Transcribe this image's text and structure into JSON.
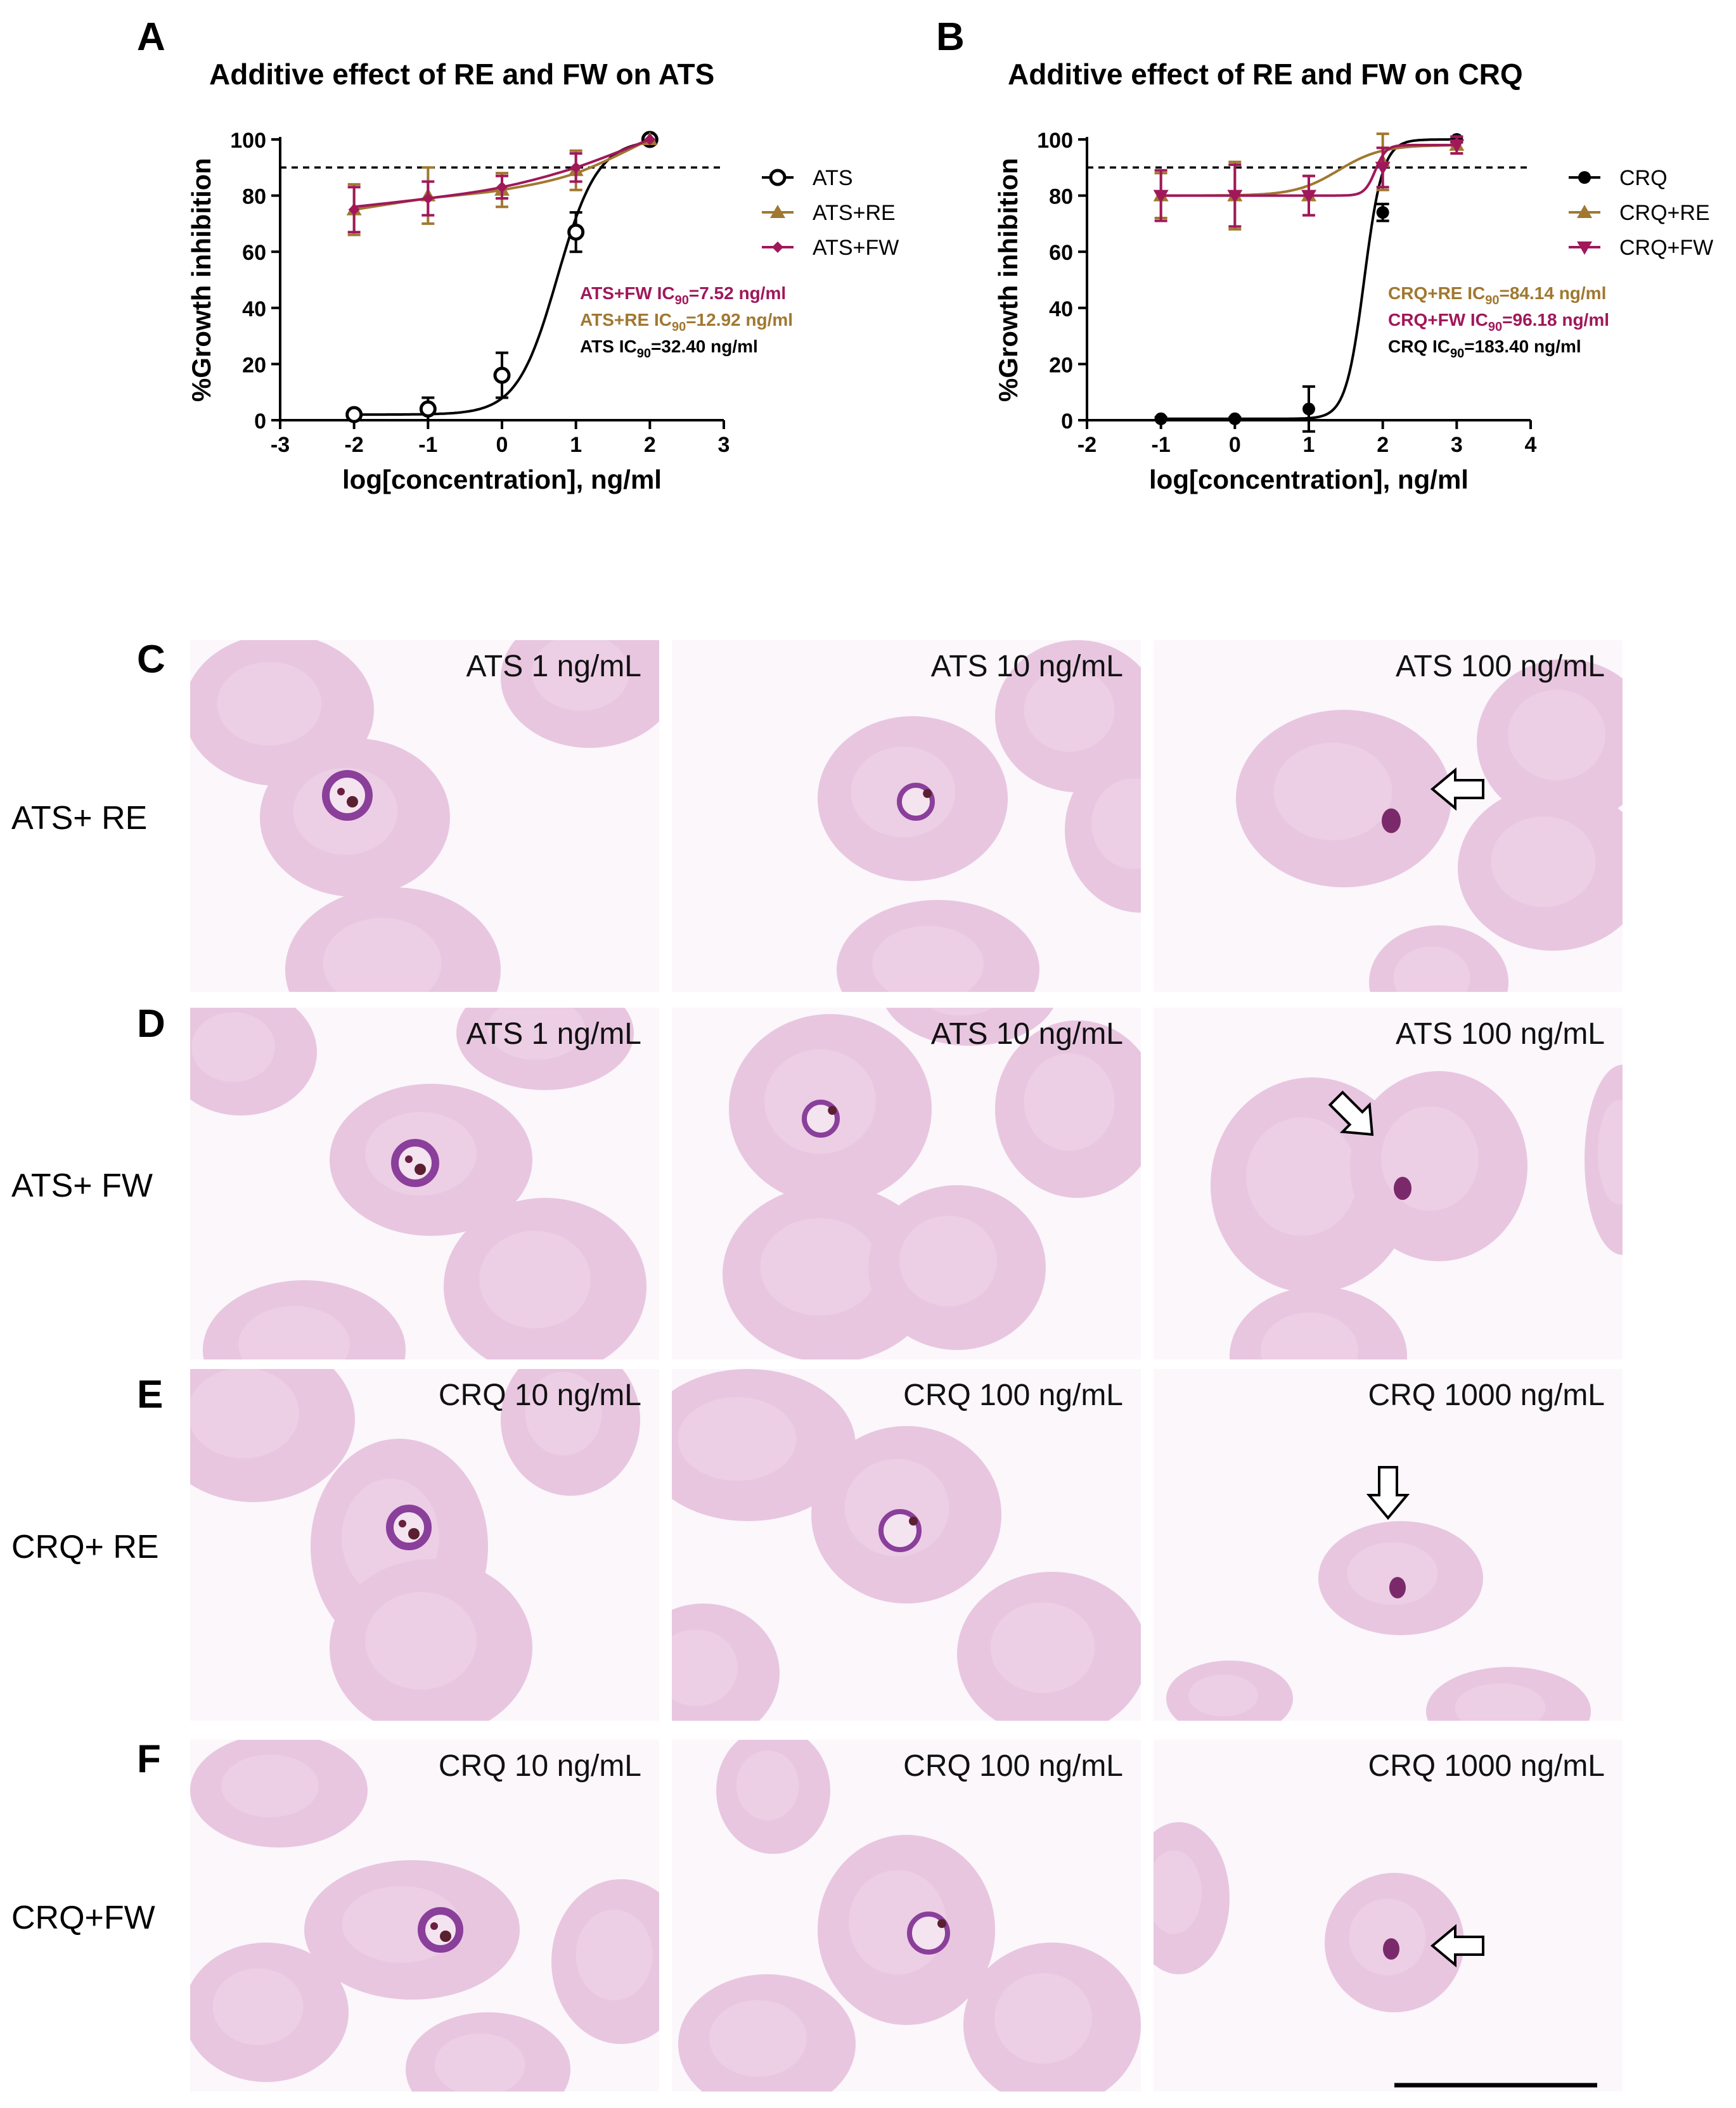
{
  "panels": {
    "A": "A",
    "B": "B",
    "C": "C",
    "D": "D",
    "E": "E",
    "F": "F"
  },
  "chart_data": [
    {
      "type": "line",
      "panel": "A",
      "title": "Additive effect of RE and FW on ATS",
      "xlabel": "log[concentration], ng/ml",
      "ylabel": "%Growth inhibition",
      "xlim": [
        -3,
        3
      ],
      "ylim": [
        0,
        100
      ],
      "xticks": [
        -3,
        -2,
        -1,
        0,
        1,
        2,
        3
      ],
      "yticks": [
        0,
        20,
        40,
        60,
        80,
        100
      ],
      "reference_line": 90,
      "series": [
        {
          "name": "ATS",
          "color": "#000000",
          "marker": "open-circle",
          "x": [
            -2,
            -1,
            0,
            1,
            2
          ],
          "y": [
            2,
            4,
            16,
            67,
            100
          ],
          "err": [
            1,
            4,
            8,
            7,
            0
          ],
          "fit": {
            "bottom": 2,
            "top": 100,
            "logec50": 0.75,
            "hill": 1.6
          }
        },
        {
          "name": "ATS+RE",
          "color": "#a07830",
          "marker": "triangle-up",
          "x": [
            -2,
            -1,
            0,
            1,
            2
          ],
          "y": [
            75,
            80,
            82,
            89,
            100
          ],
          "err": [
            9,
            10,
            6,
            7,
            0
          ],
          "fit": {
            "type": "linear-ish",
            "points": [
              [
                -2,
                75
              ],
              [
                -1,
                79
              ],
              [
                0,
                82
              ],
              [
                1,
                88
              ],
              [
                2,
                100
              ]
            ]
          }
        },
        {
          "name": "ATS+FW",
          "color": "#a0185a",
          "marker": "diamond",
          "x": [
            -2,
            -1,
            0,
            1,
            2
          ],
          "y": [
            75,
            79,
            83,
            90,
            100
          ],
          "err": [
            8,
            6,
            4,
            5,
            0
          ],
          "fit": {
            "type": "linear-ish",
            "points": [
              [
                -2,
                76
              ],
              [
                -1,
                79
              ],
              [
                0,
                83
              ],
              [
                1,
                90
              ],
              [
                2,
                100
              ]
            ]
          }
        }
      ],
      "annotations": [
        {
          "prefix": "ATS+FW IC",
          "sub": "90",
          "suffix": "=7.52 ng/ml",
          "color": "#a0185a"
        },
        {
          "prefix": "ATS+RE IC",
          "sub": "90",
          "suffix": "=12.92 ng/ml",
          "color": "#a07830"
        },
        {
          "prefix": "ATS IC",
          "sub": "90",
          "suffix": "=32.40 ng/ml",
          "color": "#000000"
        }
      ],
      "legend": "top-right"
    },
    {
      "type": "line",
      "panel": "B",
      "title": "Additive effect of RE and FW on CRQ",
      "xlabel": "log[concentration], ng/ml",
      "ylabel": "%Growth inhibition",
      "xlim": [
        -2,
        4
      ],
      "ylim": [
        0,
        100
      ],
      "xticks": [
        -2,
        -1,
        0,
        1,
        2,
        3,
        4
      ],
      "yticks": [
        0,
        20,
        40,
        60,
        80,
        100
      ],
      "reference_line": 90,
      "series": [
        {
          "name": "CRQ",
          "color": "#000000",
          "marker": "filled-circle",
          "x": [
            -1,
            0,
            1,
            2,
            3
          ],
          "y": [
            0.5,
            0.5,
            4,
            74,
            100
          ],
          "err": [
            0.5,
            0.5,
            8,
            3,
            1
          ],
          "fit": {
            "bottom": 0.5,
            "top": 100,
            "logec50": 1.75,
            "hill": 3.5
          }
        },
        {
          "name": "CRQ+RE",
          "color": "#a07830",
          "marker": "triangle-up",
          "x": [
            -1,
            0,
            1,
            2,
            3
          ],
          "y": [
            80,
            80,
            80,
            92,
            98
          ],
          "err": [
            8,
            12,
            7,
            10,
            3
          ],
          "fit": {
            "bottom": 80,
            "top": 98,
            "logec50": 1.4,
            "hill": 1.5
          }
        },
        {
          "name": "CRQ+FW",
          "color": "#a0185a",
          "marker": "triangle-down",
          "x": [
            -1,
            0,
            1,
            2,
            3
          ],
          "y": [
            80,
            80,
            80,
            90,
            98
          ],
          "err": [
            9,
            11,
            7,
            7,
            3
          ],
          "fit": {
            "bottom": 80,
            "top": 98,
            "logec50": 1.9,
            "hill": 6
          }
        }
      ],
      "annotations": [
        {
          "prefix": "CRQ+RE IC",
          "sub": "90",
          "suffix": "=84.14 ng/ml",
          "color": "#a07830"
        },
        {
          "prefix": "CRQ+FW IC",
          "sub": "90",
          "suffix": "=96.18 ng/ml",
          "color": "#a0185a"
        },
        {
          "prefix": "CRQ IC",
          "sub": "90",
          "suffix": "=183.40 ng/ml",
          "color": "#000000"
        }
      ],
      "legend": "top-right"
    }
  ],
  "micrographs": {
    "rows": [
      {
        "label": "ATS+ RE",
        "cells": [
          "ATS 1 ng/mL",
          "ATS 10 ng/mL",
          "ATS 100 ng/mL"
        ]
      },
      {
        "label": "ATS+ FW",
        "cells": [
          "ATS 1 ng/mL",
          "ATS 10 ng/mL",
          "ATS 100 ng/mL"
        ]
      },
      {
        "label": "CRQ+ RE",
        "cells": [
          "CRQ 10 ng/mL",
          "CRQ 100 ng/mL",
          "CRQ 1000 ng/mL"
        ]
      },
      {
        "label": "CRQ+FW",
        "cells": [
          "CRQ 10 ng/mL",
          "CRQ 100 ng/mL",
          "CRQ 1000 ng/mL"
        ]
      }
    ]
  },
  "colors": {
    "rbc": "#e8c6e0",
    "rbc_center": "#efd6ea",
    "parasite": "#7a2a6a",
    "parasite_ring": "#8a3f9a"
  }
}
